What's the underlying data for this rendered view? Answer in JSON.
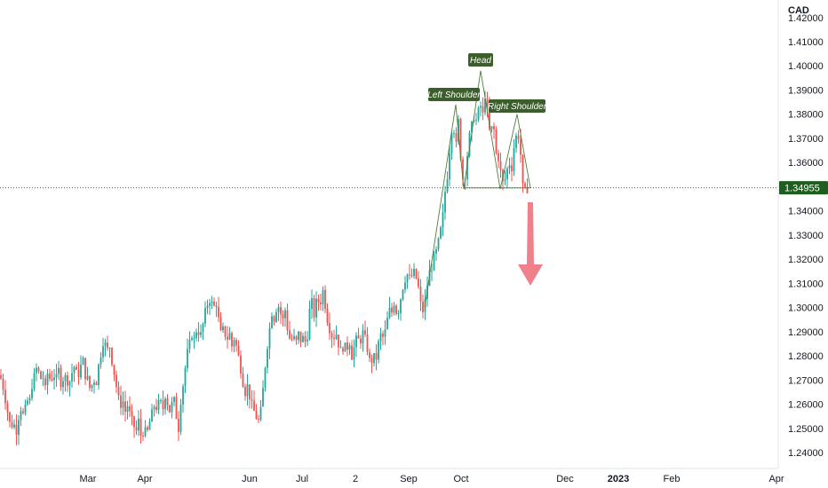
{
  "chart_data": {
    "type": "candlestick",
    "currency": "CAD",
    "ylim": [
      1.235,
      1.425
    ],
    "y_ticks": [
      "1.24000",
      "1.25000",
      "1.26000",
      "1.27000",
      "1.28000",
      "1.29000",
      "1.30000",
      "1.31000",
      "1.32000",
      "1.33000",
      "1.34000",
      "1.35000",
      "1.36000",
      "1.37000",
      "1.38000",
      "1.39000",
      "1.40000",
      "1.41000",
      "1.42000"
    ],
    "x_ticks": [
      {
        "label": "Mar",
        "x": 99
      },
      {
        "label": "Apr",
        "x": 163
      },
      {
        "label": "Jun",
        "x": 281
      },
      {
        "label": "Jul",
        "x": 340
      },
      {
        "label": "2",
        "x": 400
      },
      {
        "label": "Sep",
        "x": 460
      },
      {
        "label": "Oct",
        "x": 519
      },
      {
        "label": "Dec",
        "x": 636
      },
      {
        "label": "2023",
        "x": 696,
        "bold": true
      },
      {
        "label": "Feb",
        "x": 756
      },
      {
        "label": "Apr",
        "x": 874
      }
    ],
    "last_price": "1.34955",
    "last_price_value": 1.34955,
    "pattern": {
      "labels": {
        "left": "Left Shoulder",
        "head": "Head",
        "right": "Right Shoulder"
      },
      "neckline_price": 1.3495
    },
    "forecast": "down",
    "colors": {
      "up": "#26a69a",
      "down": "#ef5350",
      "label_bg": "#3b5e2b",
      "price_tag_bg": "#1e5e1e",
      "arrow": "#f0808a",
      "pattern_line": "#4f7d3a"
    },
    "price_path": [
      [
        0,
        1.272
      ],
      [
        3,
        1.268
      ],
      [
        6,
        1.262
      ],
      [
        9,
        1.256
      ],
      [
        12,
        1.25
      ],
      [
        15,
        1.253
      ],
      [
        18,
        1.248
      ],
      [
        21,
        1.255
      ],
      [
        24,
        1.259
      ],
      [
        27,
        1.254
      ],
      [
        30,
        1.262
      ],
      [
        33,
        1.26
      ],
      [
        36,
        1.268
      ],
      [
        39,
        1.272
      ],
      [
        42,
        1.276
      ],
      [
        45,
        1.27
      ],
      [
        48,
        1.272
      ],
      [
        51,
        1.266
      ],
      [
        54,
        1.274
      ],
      [
        57,
        1.269
      ],
      [
        60,
        1.273
      ],
      [
        63,
        1.27
      ],
      [
        66,
        1.274
      ],
      [
        69,
        1.268
      ],
      [
        72,
        1.272
      ],
      [
        75,
        1.27
      ],
      [
        78,
        1.269
      ],
      [
        81,
        1.273
      ],
      [
        84,
        1.276
      ],
      [
        87,
        1.271
      ],
      [
        90,
        1.274
      ],
      [
        93,
        1.279
      ],
      [
        96,
        1.272
      ],
      [
        99,
        1.27
      ],
      [
        102,
        1.265
      ],
      [
        105,
        1.271
      ],
      [
        108,
        1.268
      ],
      [
        111,
        1.276
      ],
      [
        114,
        1.282
      ],
      [
        117,
        1.288
      ],
      [
        120,
        1.281
      ],
      [
        123,
        1.285
      ],
      [
        126,
        1.278
      ],
      [
        129,
        1.272
      ],
      [
        132,
        1.265
      ],
      [
        135,
        1.259
      ],
      [
        138,
        1.262
      ],
      [
        141,
        1.257
      ],
      [
        144,
        1.26
      ],
      [
        147,
        1.254
      ],
      [
        150,
        1.252
      ],
      [
        153,
        1.248
      ],
      [
        156,
        1.253
      ],
      [
        159,
        1.246
      ],
      [
        162,
        1.25
      ],
      [
        165,
        1.247
      ],
      [
        168,
        1.252
      ],
      [
        171,
        1.256
      ],
      [
        174,
        1.26
      ],
      [
        177,
        1.258
      ],
      [
        180,
        1.262
      ],
      [
        183,
        1.257
      ],
      [
        186,
        1.264
      ],
      [
        189,
        1.26
      ],
      [
        192,
        1.256
      ],
      [
        195,
        1.264
      ],
      [
        198,
        1.256
      ],
      [
        201,
        1.25
      ],
      [
        204,
        1.264
      ],
      [
        207,
        1.27
      ],
      [
        210,
        1.28
      ],
      [
        213,
        1.284
      ],
      [
        216,
        1.289
      ],
      [
        219,
        1.286
      ],
      [
        222,
        1.293
      ],
      [
        225,
        1.287
      ],
      [
        228,
        1.292
      ],
      [
        231,
        1.298
      ],
      [
        234,
        1.302
      ],
      [
        237,
        1.304
      ],
      [
        240,
        1.299
      ],
      [
        243,
        1.303
      ],
      [
        246,
        1.295
      ],
      [
        249,
        1.288
      ],
      [
        252,
        1.292
      ],
      [
        255,
        1.286
      ],
      [
        258,
        1.29
      ],
      [
        261,
        1.284
      ],
      [
        264,
        1.288
      ],
      [
        267,
        1.282
      ],
      [
        270,
        1.277
      ],
      [
        273,
        1.27
      ],
      [
        276,
        1.265
      ],
      [
        279,
        1.268
      ],
      [
        282,
        1.261
      ],
      [
        285,
        1.258
      ],
      [
        288,
        1.255
      ],
      [
        291,
        1.253
      ],
      [
        294,
        1.258
      ],
      [
        297,
        1.27
      ],
      [
        300,
        1.282
      ],
      [
        303,
        1.29
      ],
      [
        306,
        1.298
      ],
      [
        309,
        1.295
      ],
      [
        312,
        1.302
      ],
      [
        315,
        1.299
      ],
      [
        318,
        1.294
      ],
      [
        321,
        1.299
      ],
      [
        324,
        1.29
      ],
      [
        327,
        1.286
      ],
      [
        330,
        1.288
      ],
      [
        333,
        1.285
      ],
      [
        336,
        1.289
      ],
      [
        339,
        1.286
      ],
      [
        342,
        1.288
      ],
      [
        345,
        1.284
      ],
      [
        348,
        1.298
      ],
      [
        351,
        1.302
      ],
      [
        354,
        1.296
      ],
      [
        357,
        1.305
      ],
      [
        360,
        1.3
      ],
      [
        363,
        1.308
      ],
      [
        366,
        1.301
      ],
      [
        369,
        1.294
      ],
      [
        372,
        1.29
      ],
      [
        375,
        1.287
      ],
      [
        378,
        1.29
      ],
      [
        381,
        1.285
      ],
      [
        384,
        1.281
      ],
      [
        387,
        1.285
      ],
      [
        390,
        1.282
      ],
      [
        393,
        1.287
      ],
      [
        396,
        1.28
      ],
      [
        399,
        1.284
      ],
      [
        402,
        1.288
      ],
      [
        405,
        1.285
      ],
      [
        408,
        1.29
      ],
      [
        411,
        1.287
      ],
      [
        414,
        1.282
      ],
      [
        417,
        1.276
      ],
      [
        420,
        1.28
      ],
      [
        423,
        1.278
      ],
      [
        426,
        1.285
      ],
      [
        429,
        1.289
      ],
      [
        432,
        1.287
      ],
      [
        435,
        1.293
      ],
      [
        438,
        1.299
      ],
      [
        441,
        1.298
      ],
      [
        444,
        1.303
      ],
      [
        447,
        1.296
      ],
      [
        450,
        1.302
      ],
      [
        453,
        1.308
      ],
      [
        456,
        1.312
      ],
      [
        459,
        1.314
      ],
      [
        462,
        1.311
      ],
      [
        465,
        1.315
      ],
      [
        468,
        1.313
      ],
      [
        471,
        1.308
      ],
      [
        474,
        1.3
      ],
      [
        477,
        1.298
      ],
      [
        480,
        1.307
      ],
      [
        483,
        1.314
      ],
      [
        486,
        1.317
      ],
      [
        489,
        1.321
      ],
      [
        492,
        1.324
      ],
      [
        495,
        1.33
      ],
      [
        498,
        1.336
      ],
      [
        501,
        1.348
      ],
      [
        504,
        1.356
      ],
      [
        507,
        1.37
      ],
      [
        510,
        1.378
      ],
      [
        513,
        1.365
      ],
      [
        516,
        1.377
      ],
      [
        519,
        1.36
      ],
      [
        522,
        1.35
      ],
      [
        525,
        1.36
      ],
      [
        528,
        1.37
      ],
      [
        531,
        1.375
      ],
      [
        534,
        1.38
      ],
      [
        537,
        1.376
      ],
      [
        540,
        1.386
      ],
      [
        543,
        1.378
      ],
      [
        546,
        1.388
      ],
      [
        549,
        1.38
      ],
      [
        552,
        1.37
      ],
      [
        555,
        1.378
      ],
      [
        558,
        1.364
      ],
      [
        561,
        1.362
      ],
      [
        564,
        1.355
      ],
      [
        567,
        1.35
      ],
      [
        570,
        1.356
      ],
      [
        573,
        1.36
      ],
      [
        576,
        1.358
      ],
      [
        579,
        1.368
      ],
      [
        582,
        1.372
      ],
      [
        585,
        1.37
      ],
      [
        588,
        1.35
      ],
      [
        591,
        1.348
      ],
      [
        594,
        1.3495
      ]
    ],
    "pattern_line": [
      [
        478,
        1.3
      ],
      [
        513,
        1.384
      ],
      [
        522,
        1.349
      ],
      [
        541,
        1.398
      ],
      [
        563,
        1.349
      ],
      [
        582,
        1.38
      ],
      [
        597,
        1.3495
      ]
    ]
  }
}
